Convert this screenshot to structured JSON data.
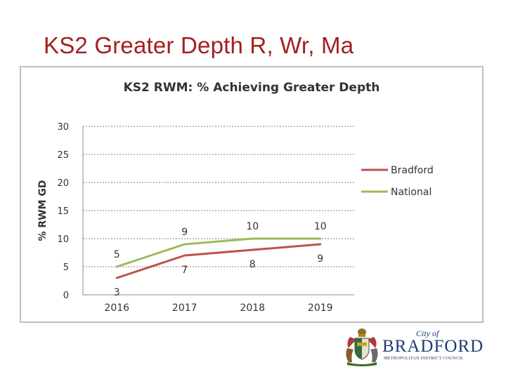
{
  "slide": {
    "title": "KS2 Greater Depth R, Wr, Ma"
  },
  "chart_data": {
    "type": "line",
    "title": "KS2 RWM: % Achieving Greater Depth",
    "xlabel": "",
    "ylabel": "% RWM GD",
    "categories": [
      "2016",
      "2017",
      "2018",
      "2019"
    ],
    "ylim": [
      0,
      30
    ],
    "yticks": [
      0,
      5,
      10,
      15,
      20,
      25,
      30
    ],
    "grid": true,
    "legend_position": "right",
    "series": [
      {
        "name": "Bradford",
        "values": [
          3,
          7,
          8,
          9
        ],
        "color": "#c0504d",
        "labels": [
          "3",
          "7",
          "8",
          "9"
        ]
      },
      {
        "name": "National",
        "values": [
          5,
          9,
          10,
          10
        ],
        "color": "#9bbb59",
        "labels": [
          "5",
          "9",
          "10",
          "10"
        ]
      }
    ]
  },
  "logo": {
    "city_of": "City of",
    "name": "BRADFORD",
    "council": "METROPOLITAN DISTRICT COUNCIL"
  },
  "colors": {
    "title": "#a31f1f",
    "logo": "#1f3a73",
    "gridline": "#808080",
    "frame": "#bfbfbf"
  }
}
